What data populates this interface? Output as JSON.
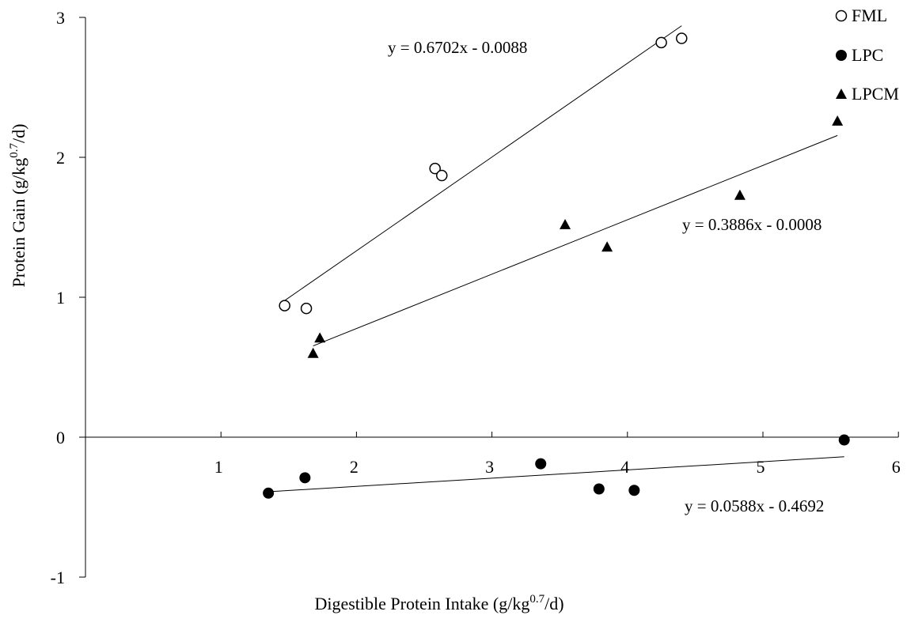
{
  "chart_data": {
    "type": "scatter",
    "title": "",
    "xlabel": "Digestible Protein Intake (g/kg",
    "xlabel_sup": "0.7",
    "xlabel_suffix": "/d)",
    "ylabel": "Protein Gain (g/kg",
    "ylabel_sup": "0.7",
    "ylabel_suffix": "/d)",
    "xlim": [
      0,
      6
    ],
    "ylim": [
      -1,
      3
    ],
    "x_ticks": [
      1,
      2,
      3,
      4,
      5,
      6
    ],
    "y_ticks": [
      -1,
      0,
      1,
      2,
      3
    ],
    "grid": false,
    "legend_position": "top-right",
    "series": [
      {
        "name": "FML",
        "marker": "open-circle",
        "x": [
          1.47,
          1.63,
          2.58,
          2.63,
          4.25,
          4.4
        ],
        "y": [
          0.94,
          0.92,
          1.92,
          1.87,
          2.82,
          2.85
        ],
        "trendline": {
          "equation": "y = 0.6702x - 0.0088",
          "slope": 0.6702,
          "intercept": -0.0088,
          "x_range": [
            1.47,
            4.4
          ]
        }
      },
      {
        "name": "LPC",
        "marker": "filled-circle",
        "x": [
          1.35,
          1.62,
          3.36,
          3.79,
          4.05,
          5.6
        ],
        "y": [
          -0.4,
          -0.29,
          -0.19,
          -0.37,
          -0.38,
          -0.02
        ],
        "trendline": {
          "equation": "y = 0.0588x - 0.4692",
          "slope": 0.0588,
          "intercept": -0.4692,
          "x_range": [
            1.35,
            5.6
          ]
        }
      },
      {
        "name": "LPCM",
        "marker": "filled-triangle",
        "x": [
          1.68,
          1.73,
          3.54,
          3.85,
          4.83,
          5.55
        ],
        "y": [
          0.6,
          0.71,
          1.52,
          1.36,
          1.73,
          2.26
        ],
        "trendline": {
          "equation": "y = 0.3886x - 0.0008",
          "slope": 0.3886,
          "intercept": -0.0008,
          "x_range": [
            1.68,
            5.55
          ]
        }
      }
    ]
  }
}
